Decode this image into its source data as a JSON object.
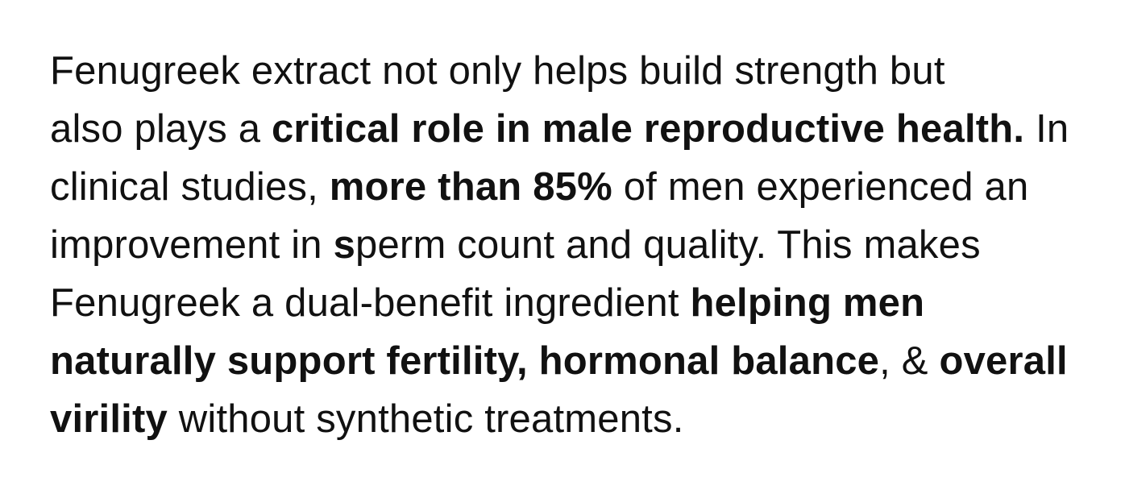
{
  "paragraph": {
    "lines": [
      [
        {
          "t": "Fenugreek extract not only helps build strength but",
          "b": false
        }
      ],
      [
        {
          "t": "also plays a ",
          "b": false
        },
        {
          "t": "critical role in male reproductive health.",
          "b": true
        },
        {
          "t": " In",
          "b": false
        }
      ],
      [
        {
          "t": "clinical studies, ",
          "b": false
        },
        {
          "t": "more than 85%",
          "b": true
        },
        {
          "t": " of men experienced an",
          "b": false
        }
      ],
      [
        {
          "t": "improvement in ",
          "b": false
        },
        {
          "t": "s",
          "b": true
        },
        {
          "t": "perm count and quality. This makes",
          "b": false
        }
      ],
      [
        {
          "t": "Fenugreek a dual-benefit ingredient ",
          "b": false
        },
        {
          "t": "helping men",
          "b": true
        }
      ],
      [
        {
          "t": "naturally support fertility, hormonal balance",
          "b": true
        },
        {
          "t": ", & ",
          "b": false
        },
        {
          "t": "overall",
          "b": true
        }
      ],
      [
        {
          "t": "virility",
          "b": true
        },
        {
          "t": " without synthetic treatments.",
          "b": false
        }
      ]
    ]
  }
}
